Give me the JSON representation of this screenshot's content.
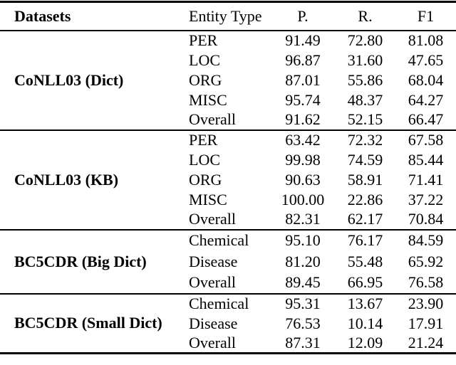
{
  "table": {
    "headers": {
      "datasets": "Datasets",
      "entity_type": "Entity Type",
      "precision": "P.",
      "recall": "R.",
      "f1": "F1"
    },
    "sections": [
      {
        "dataset": "CoNLL03 (Dict)",
        "rows": [
          {
            "entity": "PER",
            "p": "91.49",
            "r": "72.80",
            "f1": "81.08"
          },
          {
            "entity": "LOC",
            "p": "96.87",
            "r": "31.60",
            "f1": "47.65"
          },
          {
            "entity": "ORG",
            "p": "87.01",
            "r": "55.86",
            "f1": "68.04"
          },
          {
            "entity": "MISC",
            "p": "95.74",
            "r": "48.37",
            "f1": "64.27"
          },
          {
            "entity": "Overall",
            "p": "91.62",
            "r": "52.15",
            "f1": "66.47"
          }
        ]
      },
      {
        "dataset": "CoNLL03 (KB)",
        "rows": [
          {
            "entity": "PER",
            "p": "63.42",
            "r": "72.32",
            "f1": "67.58"
          },
          {
            "entity": "LOC",
            "p": "99.98",
            "r": "74.59",
            "f1": "85.44"
          },
          {
            "entity": "ORG",
            "p": "90.63",
            "r": "58.91",
            "f1": "71.41"
          },
          {
            "entity": "MISC",
            "p": "100.00",
            "r": "22.86",
            "f1": "37.22"
          },
          {
            "entity": "Overall",
            "p": "82.31",
            "r": "62.17",
            "f1": "70.84"
          }
        ]
      },
      {
        "dataset": "BC5CDR (Big Dict)",
        "rows": [
          {
            "entity": "Chemical",
            "p": "95.10",
            "r": "76.17",
            "f1": "84.59"
          },
          {
            "entity": "Disease",
            "p": "81.20",
            "r": "55.48",
            "f1": "65.92"
          },
          {
            "entity": "Overall",
            "p": "89.45",
            "r": "66.95",
            "f1": "76.58"
          }
        ]
      },
      {
        "dataset": "BC5CDR (Small Dict)",
        "rows": [
          {
            "entity": "Chemical",
            "p": "95.31",
            "r": "13.67",
            "f1": "23.90"
          },
          {
            "entity": "Disease",
            "p": "76.53",
            "r": "10.14",
            "f1": "17.91"
          },
          {
            "entity": "Overall",
            "p": "87.31",
            "r": "12.09",
            "f1": "21.24"
          }
        ]
      }
    ]
  }
}
